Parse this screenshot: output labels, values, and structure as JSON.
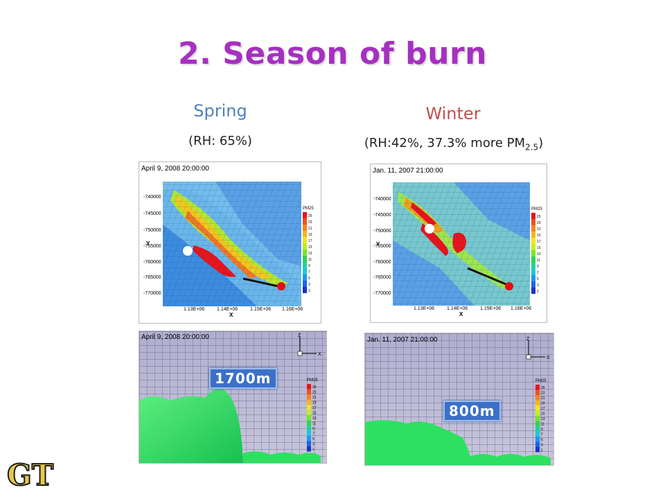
{
  "slide": {
    "title": "2. Season of burn",
    "spring": {
      "heading": "Spring",
      "subtitle": "(RH: 65%)",
      "heading_color": "#4f81bd",
      "map_timestamp": "April 9, 2008 20:00:00",
      "side_timestamp": "April 9, 2008 20:00:00",
      "height_label": "1700m"
    },
    "winter": {
      "heading": "Winter",
      "subtitle_main": "(RH:42%, 37.3% more PM",
      "subtitle_sub": "2.5",
      "subtitle_end": ")",
      "heading_color": "#c0504d",
      "map_timestamp": "Jan. 11, 2007 21:00:00",
      "side_timestamp": "Jan. 11, 2007 21:00:00",
      "height_label": "800m"
    },
    "map_axes": {
      "y_ticks": [
        "-740000",
        "-745000",
        "-750000",
        "-755000",
        "-760000",
        "-765000",
        "-770000"
      ],
      "x_ticks": [
        "1.13E+06",
        "1.14E+06",
        "1.15E+06",
        "1.16E+06"
      ],
      "x_label": "X",
      "y_label": "Y"
    },
    "side_axes": {
      "z_label": "Z",
      "x_label": "X"
    },
    "legend": {
      "title": "PM25",
      "levels": [
        "25",
        "23",
        "21",
        "19",
        "17",
        "15",
        "13",
        "11",
        "9",
        "7",
        "5",
        "3",
        "1"
      ],
      "colors": [
        "#e8141e",
        "#f0501e",
        "#f5841e",
        "#f8b41e",
        "#f0e61e",
        "#c0f01e",
        "#78e628",
        "#32d250",
        "#1ed2a0",
        "#1ec8dc",
        "#1e96f0",
        "#1e64e6",
        "#1e32c8"
      ]
    },
    "logo_text": "GT"
  }
}
